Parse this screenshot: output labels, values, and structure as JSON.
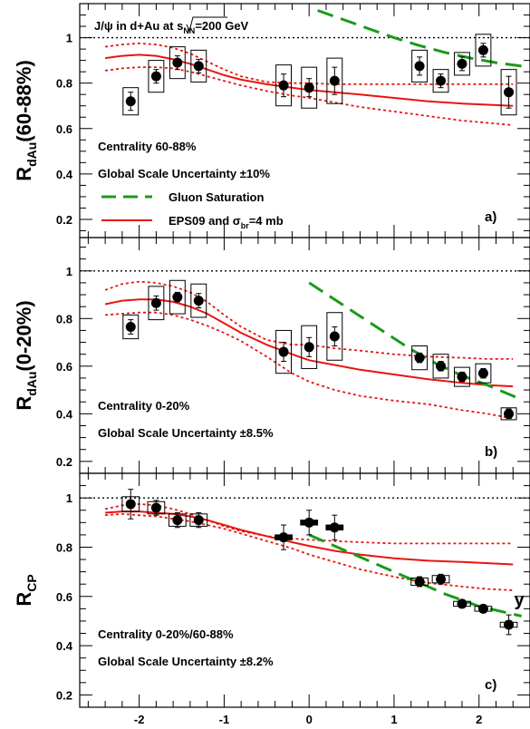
{
  "figure": {
    "x_label": "y",
    "x_ticks": [
      -2,
      -1,
      0,
      1,
      2
    ],
    "x_range": [
      -2.7,
      2.6
    ],
    "colors": {
      "data": "#000000",
      "eps09": "#e8150f",
      "saturation": "#1a9a1a",
      "reference": "#000000"
    }
  },
  "chart_data": [
    {
      "type": "scatter",
      "panel_label": "a)",
      "ylabel_main": "R",
      "ylabel_sub": "dAu",
      "ylabel_tail": "(60-88%)",
      "ylim": [
        0.12,
        1.15
      ],
      "yticks": [
        0.2,
        0.4,
        0.6,
        0.8,
        1
      ],
      "reference_line": 1,
      "title_parts": {
        "pre": "J/ψ in d+Au at",
        "radical": "s",
        "sub": "NN",
        "post": "=200 GeV"
      },
      "texts": [
        "Centrality 60-88%",
        "Global Scale Uncertainty ±10%"
      ],
      "legend": [
        {
          "label": "Gluon Saturation",
          "style": "dashed",
          "color": "#1a9a1a"
        },
        {
          "label_main": "EPS09 and σ",
          "label_sub": "br",
          "label_tail": "=4 mb",
          "style": "solid",
          "color": "#e8150f"
        }
      ],
      "points": [
        {
          "x": -2.1,
          "y": 0.72,
          "stat": 0.04,
          "box": 0.06
        },
        {
          "x": -1.8,
          "y": 0.83,
          "stat": 0.03,
          "box": 0.07
        },
        {
          "x": -1.55,
          "y": 0.89,
          "stat": 0.03,
          "box": 0.07
        },
        {
          "x": -1.3,
          "y": 0.875,
          "stat": 0.03,
          "box": 0.07
        },
        {
          "x": -0.3,
          "y": 0.79,
          "stat": 0.05,
          "box": 0.09
        },
        {
          "x": 0,
          "y": 0.78,
          "stat": 0.04,
          "box": 0.09
        },
        {
          "x": 0.3,
          "y": 0.81,
          "stat": 0.06,
          "box": 0.1
        },
        {
          "x": 1.3,
          "y": 0.875,
          "stat": 0.04,
          "box": 0.07
        },
        {
          "x": 1.55,
          "y": 0.81,
          "stat": 0.03,
          "box": 0.05
        },
        {
          "x": 1.8,
          "y": 0.885,
          "stat": 0.03,
          "box": 0.05
        },
        {
          "x": 2.05,
          "y": 0.945,
          "stat": 0.03,
          "box": 0.07
        },
        {
          "x": 2.35,
          "y": 0.76,
          "stat": 0.07,
          "box": 0.1
        }
      ],
      "eps09_central": {
        "x": [
          -2.4,
          -2.2,
          -2.0,
          -1.8,
          -1.6,
          -1.4,
          -1.2,
          -1.0,
          -0.8,
          -0.5,
          -0.2,
          0,
          0.3,
          0.6,
          1.0,
          1.4,
          1.8,
          2.1,
          2.4
        ],
        "y": [
          0.91,
          0.92,
          0.925,
          0.92,
          0.905,
          0.885,
          0.86,
          0.835,
          0.815,
          0.795,
          0.78,
          0.77,
          0.76,
          0.75,
          0.735,
          0.72,
          0.71,
          0.705,
          0.7
        ]
      },
      "eps09_upper": {
        "x": [
          -2.4,
          -2.2,
          -2.0,
          -1.8,
          -1.6,
          -1.4,
          -1.2,
          -1.0,
          -0.8,
          -0.5,
          -0.2,
          0,
          0.3,
          0.6,
          1.0,
          1.4,
          1.8,
          2.1,
          2.4
        ],
        "y": [
          0.96,
          0.97,
          0.975,
          0.97,
          0.955,
          0.93,
          0.895,
          0.86,
          0.83,
          0.805,
          0.8,
          0.8,
          0.795,
          0.795,
          0.795,
          0.795,
          0.795,
          0.795,
          0.795
        ]
      },
      "eps09_lower": {
        "x": [
          -2.4,
          -2.2,
          -2.0,
          -1.8,
          -1.6,
          -1.4,
          -1.2,
          -1.0,
          -0.8,
          -0.5,
          -0.2,
          0,
          0.3,
          0.6,
          1.0,
          1.4,
          1.8,
          2.1,
          2.4
        ],
        "y": [
          0.855,
          0.865,
          0.87,
          0.87,
          0.865,
          0.85,
          0.83,
          0.81,
          0.79,
          0.765,
          0.745,
          0.735,
          0.715,
          0.695,
          0.675,
          0.655,
          0.635,
          0.625,
          0.615
        ]
      },
      "saturation": {
        "x": [
          0.1,
          0.4,
          0.7,
          1.0,
          1.3,
          1.6,
          1.9,
          2.2,
          2.5
        ],
        "y": [
          1.12,
          1.08,
          1.04,
          1.0,
          0.965,
          0.935,
          0.91,
          0.89,
          0.875
        ]
      }
    },
    {
      "type": "scatter",
      "panel_label": "b)",
      "ylabel_main": "R",
      "ylabel_sub": "dAu",
      "ylabel_tail": "(0-20%)",
      "ylim": [
        0.15,
        1.14
      ],
      "yticks": [
        0.2,
        0.4,
        0.6,
        0.8,
        1
      ],
      "reference_line": 1,
      "texts": [
        "Centrality 0-20%",
        "Global Scale Uncertainty ±8.5%"
      ],
      "points": [
        {
          "x": -2.1,
          "y": 0.765,
          "stat": 0.03,
          "box": 0.05
        },
        {
          "x": -1.8,
          "y": 0.865,
          "stat": 0.03,
          "box": 0.07
        },
        {
          "x": -1.55,
          "y": 0.89,
          "stat": 0.02,
          "box": 0.07
        },
        {
          "x": -1.3,
          "y": 0.875,
          "stat": 0.03,
          "box": 0.07
        },
        {
          "x": -0.3,
          "y": 0.66,
          "stat": 0.04,
          "box": 0.09
        },
        {
          "x": 0,
          "y": 0.68,
          "stat": 0.04,
          "box": 0.09
        },
        {
          "x": 0.3,
          "y": 0.725,
          "stat": 0.04,
          "box": 0.1
        },
        {
          "x": 1.3,
          "y": 0.635,
          "stat": 0.02,
          "box": 0.05
        },
        {
          "x": 1.55,
          "y": 0.6,
          "stat": 0.02,
          "box": 0.05
        },
        {
          "x": 1.8,
          "y": 0.555,
          "stat": 0.02,
          "box": 0.04
        },
        {
          "x": 2.05,
          "y": 0.57,
          "stat": 0.02,
          "box": 0.04
        },
        {
          "x": 2.35,
          "y": 0.4,
          "stat": 0.02,
          "box": 0.025
        }
      ],
      "eps09_central": {
        "x": [
          -2.4,
          -2.2,
          -2.0,
          -1.8,
          -1.6,
          -1.4,
          -1.2,
          -1.0,
          -0.8,
          -0.5,
          -0.2,
          0,
          0.3,
          0.6,
          1.0,
          1.4,
          1.8,
          2.1,
          2.4
        ],
        "y": [
          0.86,
          0.875,
          0.88,
          0.88,
          0.87,
          0.85,
          0.82,
          0.78,
          0.74,
          0.69,
          0.65,
          0.625,
          0.605,
          0.585,
          0.565,
          0.545,
          0.53,
          0.52,
          0.515
        ]
      },
      "eps09_upper": {
        "x": [
          -2.4,
          -2.2,
          -2.0,
          -1.8,
          -1.6,
          -1.4,
          -1.2,
          -1.0,
          -0.8,
          -0.5,
          -0.2,
          0,
          0.3,
          0.6,
          1.0,
          1.4,
          1.8,
          2.1,
          2.4
        ],
        "y": [
          0.92,
          0.945,
          0.955,
          0.95,
          0.935,
          0.91,
          0.87,
          0.815,
          0.765,
          0.71,
          0.69,
          0.69,
          0.675,
          0.665,
          0.65,
          0.64,
          0.635,
          0.63,
          0.63
        ]
      },
      "eps09_lower": {
        "x": [
          -2.4,
          -2.2,
          -2.0,
          -1.8,
          -1.6,
          -1.4,
          -1.2,
          -1.0,
          -0.8,
          -0.5,
          -0.2,
          0,
          0.3,
          0.6,
          1.0,
          1.4,
          1.8,
          2.1,
          2.4
        ],
        "y": [
          0.815,
          0.82,
          0.825,
          0.825,
          0.815,
          0.795,
          0.77,
          0.74,
          0.705,
          0.64,
          0.57,
          0.535,
          0.5,
          0.475,
          0.455,
          0.44,
          0.415,
          0.4,
          0.38
        ]
      },
      "saturation": {
        "x": [
          0,
          0.3,
          0.6,
          0.9,
          1.2,
          1.5,
          1.8,
          2.1,
          2.5
        ],
        "y": [
          0.95,
          0.88,
          0.81,
          0.74,
          0.67,
          0.61,
          0.56,
          0.52,
          0.46
        ]
      }
    },
    {
      "type": "scatter",
      "panel_label": "c)",
      "ylabel_main": "R",
      "ylabel_sub": "CP",
      "ylabel_tail": "",
      "ylim": [
        0.15,
        1.1
      ],
      "yticks": [
        0.2,
        0.4,
        0.6,
        0.8,
        1
      ],
      "reference_line": 1,
      "texts": [
        "Centrality 0-20%/60-88%",
        "Global Scale Uncertainty ±8.2%"
      ],
      "points": [
        {
          "x": -2.1,
          "y": 0.975,
          "stat": 0.06,
          "box": 0.03,
          "bw": 0.2
        },
        {
          "x": -1.8,
          "y": 0.96,
          "stat": 0.03,
          "box": 0.025,
          "bw": 0.2
        },
        {
          "x": -1.55,
          "y": 0.91,
          "stat": 0.03,
          "box": 0.025,
          "bw": 0.2
        },
        {
          "x": -1.3,
          "y": 0.91,
          "stat": 0.03,
          "box": 0.025,
          "bw": 0.2
        },
        {
          "x": -0.3,
          "y": 0.84,
          "stat": 0.05,
          "box": 0.01,
          "bw": 0.2,
          "filled_box": true
        },
        {
          "x": 0,
          "y": 0.9,
          "stat": 0.05,
          "box": 0.01,
          "bw": 0.2,
          "filled_box": true
        },
        {
          "x": 0.3,
          "y": 0.88,
          "stat": 0.05,
          "box": 0.01,
          "bw": 0.2,
          "filled_box": true
        },
        {
          "x": 1.3,
          "y": 0.66,
          "stat": 0.02,
          "box": 0.015,
          "bw": 0.2
        },
        {
          "x": 1.55,
          "y": 0.67,
          "stat": 0.02,
          "box": 0.015,
          "bw": 0.2
        },
        {
          "x": 1.8,
          "y": 0.57,
          "stat": 0.015,
          "box": 0.01,
          "bw": 0.2
        },
        {
          "x": 2.05,
          "y": 0.55,
          "stat": 0.015,
          "box": 0.01,
          "bw": 0.2
        },
        {
          "x": 2.35,
          "y": 0.485,
          "stat": 0.04,
          "box": 0.01,
          "bw": 0.2
        }
      ],
      "eps09_central": {
        "x": [
          -2.4,
          -2.2,
          -2.0,
          -1.8,
          -1.6,
          -1.4,
          -1.2,
          -1.0,
          -0.8,
          -0.5,
          -0.2,
          0,
          0.3,
          0.6,
          1.0,
          1.4,
          1.8,
          2.1,
          2.4
        ],
        "y": [
          0.94,
          0.945,
          0.945,
          0.94,
          0.935,
          0.925,
          0.91,
          0.89,
          0.87,
          0.845,
          0.82,
          0.805,
          0.785,
          0.77,
          0.755,
          0.745,
          0.74,
          0.735,
          0.73
        ]
      },
      "eps09_upper": {
        "x": [
          -2.4,
          -2.2,
          -2.0,
          -1.8,
          -1.6,
          -1.4,
          -1.2,
          -1.0,
          -0.8,
          -0.5,
          -0.2,
          0,
          0.3,
          0.6,
          1.0,
          1.4,
          1.8,
          2.1,
          2.4
        ],
        "y": [
          0.955,
          0.97,
          0.975,
          0.97,
          0.955,
          0.935,
          0.91,
          0.885,
          0.865,
          0.845,
          0.835,
          0.83,
          0.825,
          0.82,
          0.815,
          0.815,
          0.815,
          0.815,
          0.815
        ]
      },
      "eps09_lower": {
        "x": [
          -2.4,
          -2.2,
          -2.0,
          -1.8,
          -1.6,
          -1.4,
          -1.2,
          -1.0,
          -0.8,
          -0.5,
          -0.2,
          0,
          0.3,
          0.6,
          1.0,
          1.4,
          1.8,
          2.1,
          2.4
        ],
        "y": [
          0.93,
          0.935,
          0.93,
          0.925,
          0.915,
          0.905,
          0.89,
          0.875,
          0.855,
          0.825,
          0.795,
          0.77,
          0.74,
          0.71,
          0.68,
          0.655,
          0.64,
          0.63,
          0.625
        ]
      },
      "saturation": {
        "x": [
          0,
          0.4,
          0.8,
          1.2,
          1.6,
          2.0,
          2.5
        ],
        "y": [
          0.85,
          0.79,
          0.73,
          0.67,
          0.61,
          0.56,
          0.52
        ]
      }
    }
  ]
}
